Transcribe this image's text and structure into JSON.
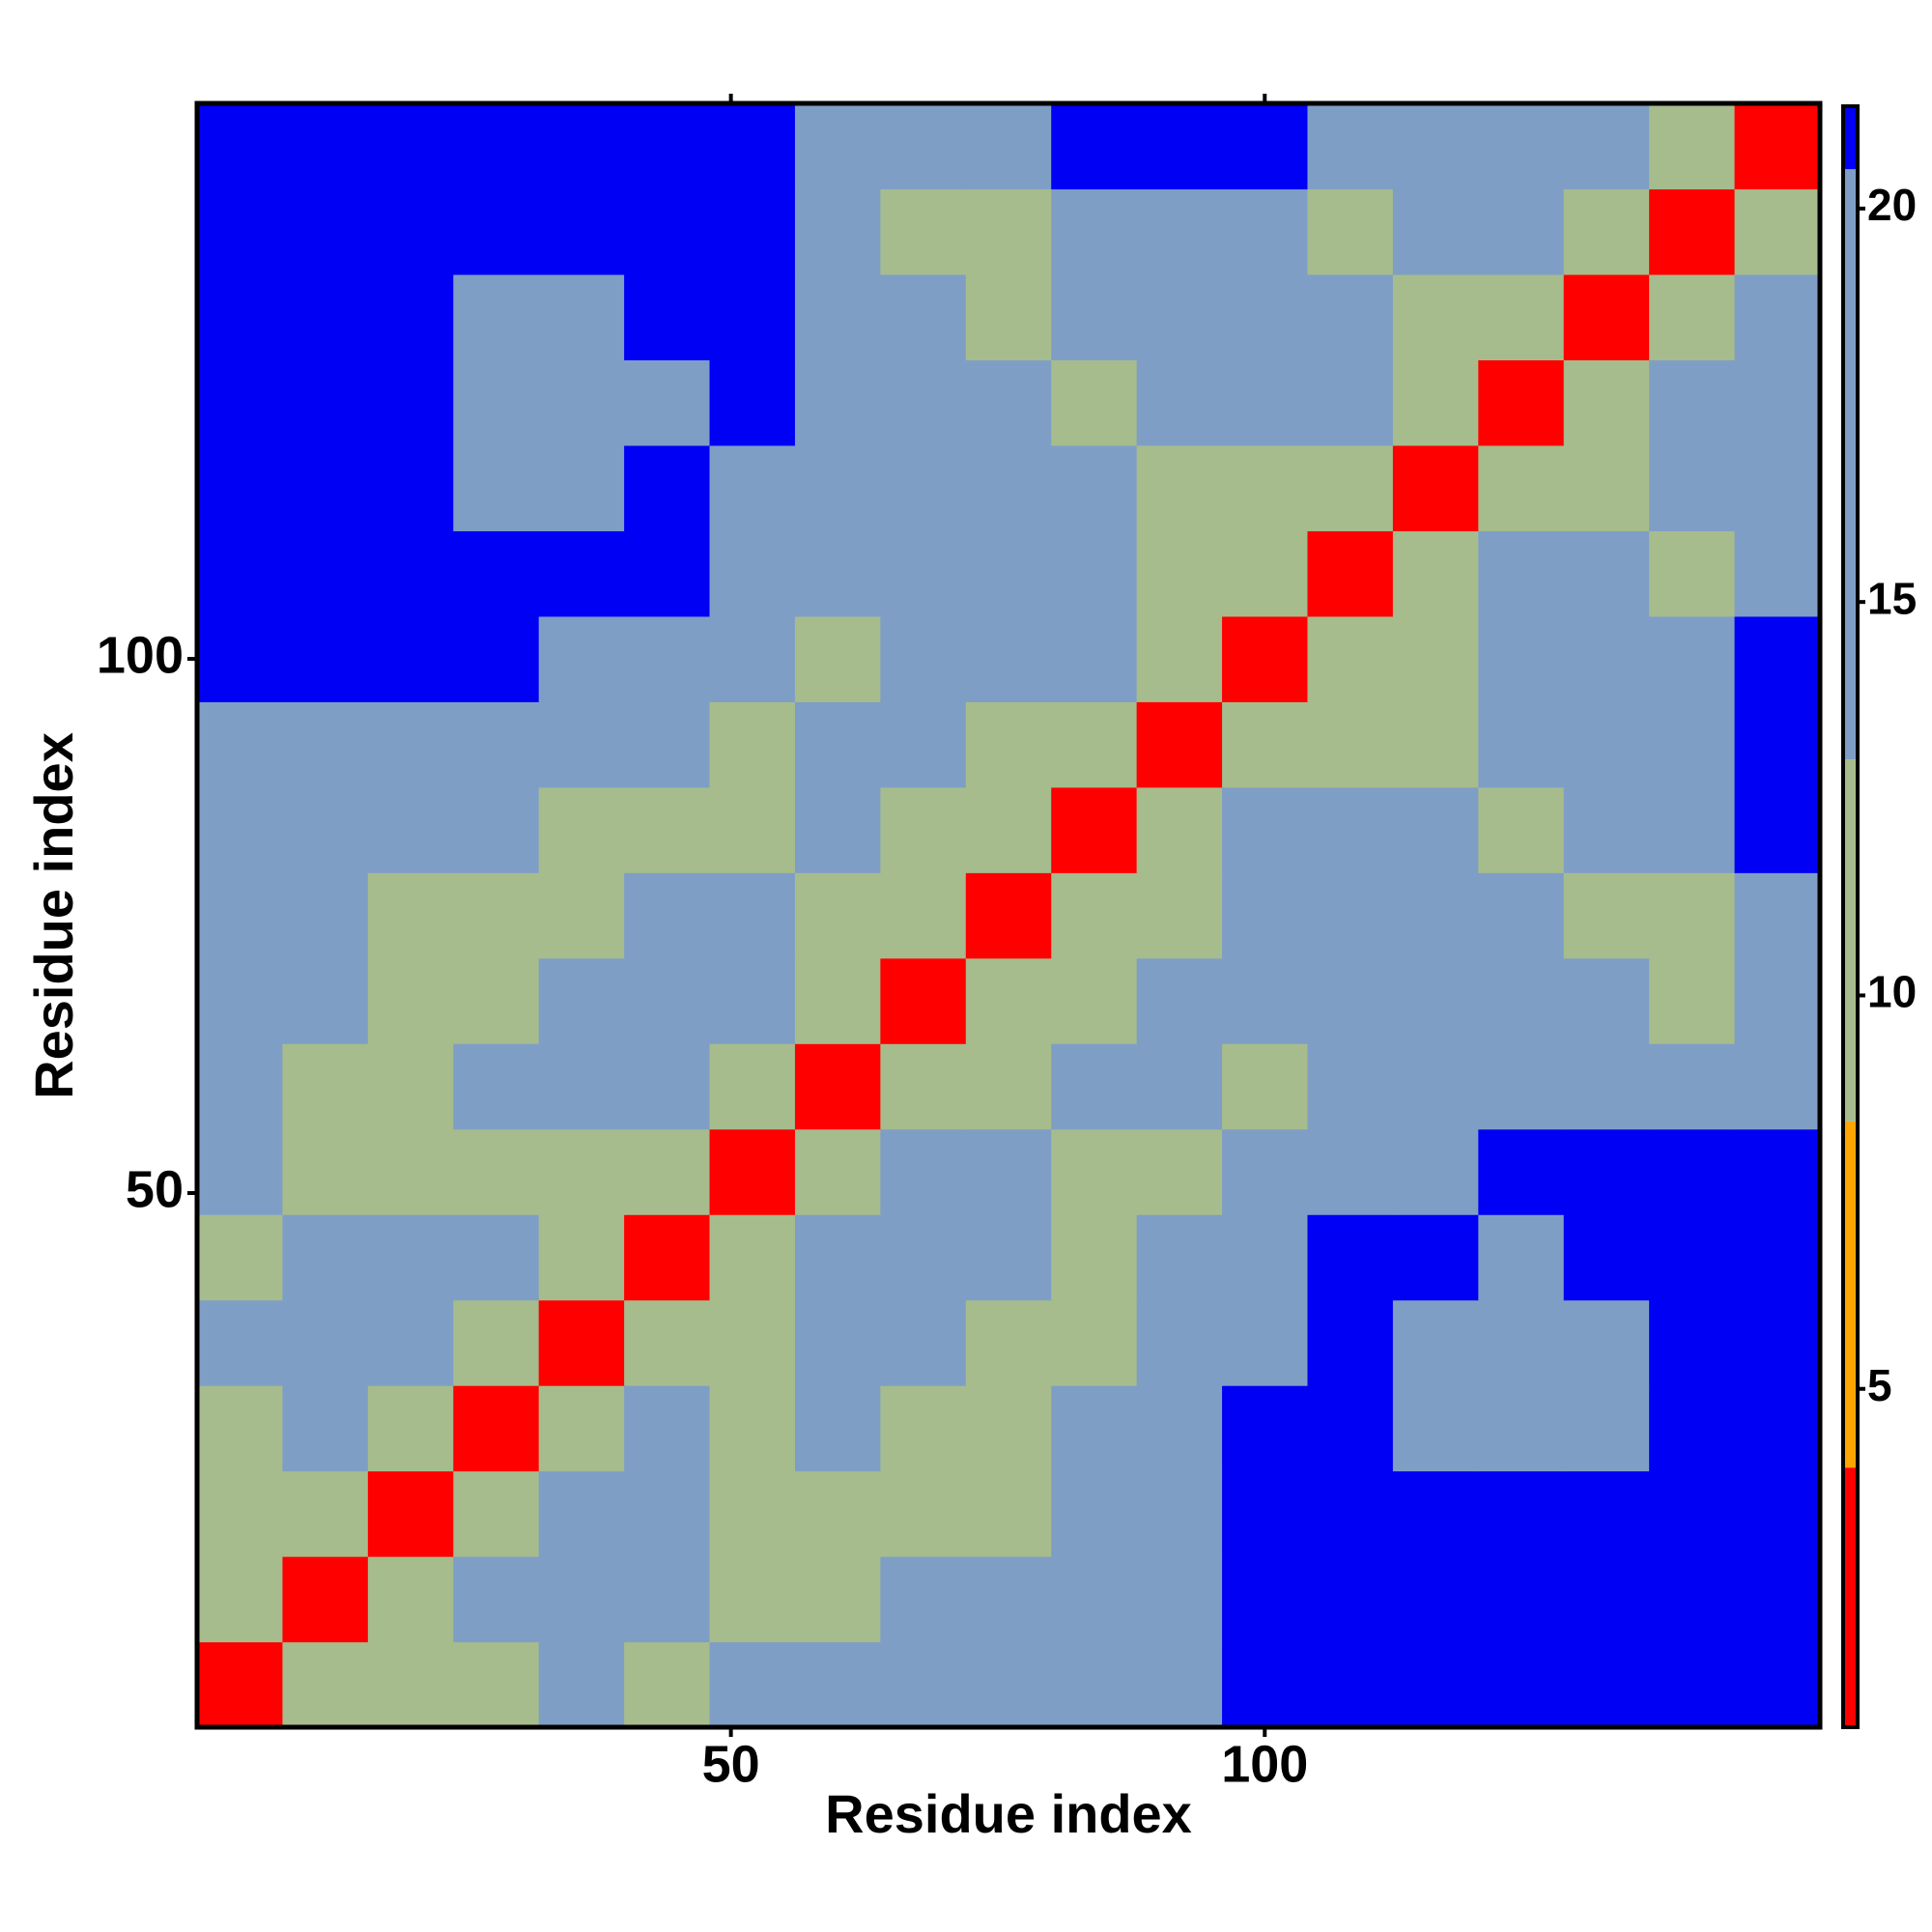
{
  "chart_data": {
    "type": "heatmap",
    "x_label": "Residue index",
    "y_label": "Residue index",
    "xlim": [
      0,
      152
    ],
    "ylim": [
      0,
      152
    ],
    "xticks": [
      50,
      100
    ],
    "yticks": [
      50,
      100
    ],
    "bin_edges": [
      0,
      8,
      16,
      24,
      32,
      40,
      48,
      56,
      64,
      72,
      80,
      88,
      96,
      104,
      112,
      120,
      128,
      136,
      144,
      152
    ],
    "z": [
      [
        3,
        10,
        12,
        12,
        13,
        12,
        14,
        18,
        20,
        20,
        20,
        20,
        21,
        21,
        21,
        21,
        21,
        21,
        21
      ],
      [
        10,
        3,
        10,
        13,
        17,
        13,
        12,
        12,
        13,
        15,
        19,
        20,
        21,
        21,
        21,
        21,
        21,
        21,
        21
      ],
      [
        12,
        10,
        3,
        10,
        14,
        15,
        12,
        11,
        11,
        12,
        17,
        20,
        21,
        21,
        21,
        21,
        21,
        21,
        21
      ],
      [
        12,
        13,
        10,
        3,
        10,
        13,
        12,
        16,
        12,
        11,
        13,
        19,
        21,
        21,
        20,
        20,
        20,
        21,
        21
      ],
      [
        13,
        17,
        14,
        10,
        3,
        9,
        12,
        15,
        13,
        12,
        12,
        17,
        20,
        21,
        19,
        19,
        19,
        21,
        21
      ],
      [
        12,
        13,
        15,
        13,
        9,
        3,
        9,
        13,
        15,
        13,
        11,
        14,
        20,
        21,
        21,
        20,
        21,
        21,
        21
      ],
      [
        14,
        12,
        12,
        12,
        12,
        9,
        3,
        9,
        13,
        13,
        12,
        12,
        13,
        18,
        20,
        21,
        21,
        21,
        21
      ],
      [
        18,
        12,
        11,
        16,
        15,
        13,
        9,
        3,
        9,
        12,
        14,
        13,
        12,
        14,
        16,
        15,
        14,
        15,
        19
      ],
      [
        20,
        13,
        11,
        12,
        13,
        15,
        13,
        9,
        3,
        9,
        12,
        14,
        15,
        17,
        14,
        14,
        16,
        12,
        15
      ],
      [
        20,
        15,
        12,
        11,
        12,
        13,
        13,
        12,
        9,
        3,
        9,
        12,
        16,
        18,
        15,
        13,
        12,
        12,
        17
      ],
      [
        20,
        19,
        17,
        13,
        12,
        11,
        12,
        14,
        12,
        9,
        3,
        9,
        13,
        18,
        14,
        12,
        13,
        16,
        21
      ],
      [
        20,
        20,
        20,
        19,
        17,
        14,
        12,
        13,
        14,
        12,
        9,
        3,
        9,
        12,
        12,
        14,
        18,
        19,
        21
      ],
      [
        21,
        21,
        21,
        21,
        20,
        20,
        13,
        12,
        15,
        16,
        13,
        9,
        3,
        9,
        12,
        14,
        13,
        15,
        21
      ],
      [
        21,
        21,
        21,
        21,
        21,
        21,
        18,
        14,
        17,
        18,
        18,
        12,
        9,
        3,
        9,
        13,
        16,
        12,
        17
      ],
      [
        21,
        21,
        21,
        20,
        19,
        21,
        20,
        16,
        14,
        15,
        14,
        12,
        12,
        9,
        3,
        9,
        12,
        14,
        18
      ],
      [
        21,
        21,
        21,
        20,
        19,
        20,
        21,
        15,
        14,
        13,
        12,
        14,
        14,
        13,
        9,
        3,
        9,
        13,
        18
      ],
      [
        21,
        21,
        21,
        20,
        19,
        21,
        21,
        14,
        16,
        12,
        13,
        18,
        13,
        16,
        12,
        9,
        3,
        9,
        14
      ],
      [
        21,
        21,
        21,
        21,
        21,
        21,
        21,
        15,
        12,
        12,
        16,
        19,
        15,
        12,
        14,
        13,
        9,
        3,
        9
      ],
      [
        21,
        21,
        21,
        21,
        21,
        21,
        21,
        19,
        15,
        17,
        21,
        21,
        21,
        17,
        18,
        18,
        14,
        9,
        3
      ]
    ],
    "colorbar": {
      "lim": [
        0.7,
        21.3
      ],
      "ticks": [
        5,
        10,
        15,
        20
      ],
      "levels": [
        {
          "from": 0.7,
          "to": 4,
          "color": "#ff0000"
        },
        {
          "from": 4,
          "to": 8.4,
          "color": "#ffa500"
        },
        {
          "from": 8.4,
          "to": 13,
          "color": "#a6bc8c"
        },
        {
          "from": 13,
          "to": 20.5,
          "color": "#7f9ec6"
        },
        {
          "from": 20.5,
          "to": 21.3,
          "color": "#0000f5"
        }
      ]
    }
  }
}
